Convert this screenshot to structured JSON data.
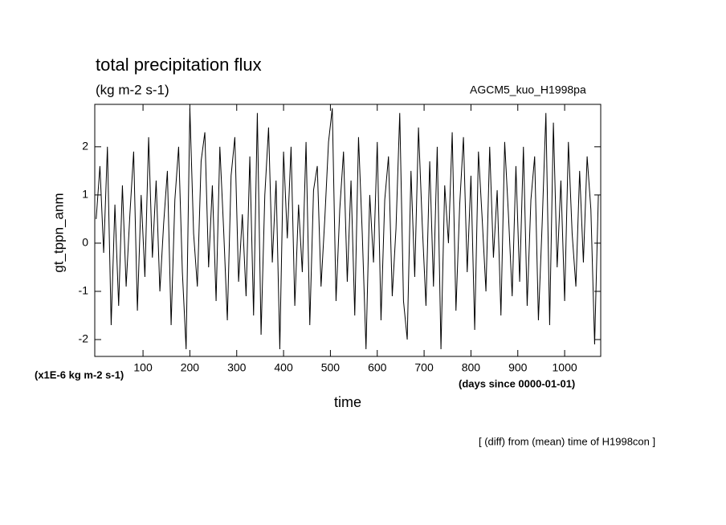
{
  "chart_data": {
    "type": "line",
    "title": "total precipitation flux",
    "subtitle": "(kg m-2 s-1)",
    "experiment": "AGCM5_kuo_H1998pa",
    "y_label": "gt_tppn_anm",
    "y_unit": "(x1E-6 kg m-2 s-1)",
    "x_label": "time",
    "x_unit": "(days since 0000-01-01)",
    "note": "[ (diff) from (mean) time of H1998con ]",
    "xlim": [
      -3,
      1077
    ],
    "ylim": [
      -2.35,
      2.88
    ],
    "xticks": [
      100,
      200,
      300,
      400,
      500,
      600,
      700,
      800,
      900,
      1000
    ],
    "yticks": [
      -2,
      -1,
      0,
      1,
      2
    ],
    "color": "#000000",
    "x": [
      0,
      8,
      16,
      24,
      32,
      40,
      48,
      56,
      64,
      72,
      80,
      88,
      96,
      104,
      112,
      120,
      128,
      136,
      144,
      152,
      160,
      168,
      176,
      184,
      192,
      200,
      208,
      216,
      224,
      232,
      240,
      248,
      256,
      264,
      272,
      280,
      288,
      296,
      304,
      312,
      320,
      328,
      336,
      344,
      352,
      360,
      368,
      376,
      384,
      392,
      400,
      408,
      416,
      424,
      432,
      440,
      448,
      456,
      464,
      472,
      480,
      488,
      496,
      504,
      512,
      520,
      528,
      536,
      544,
      552,
      560,
      568,
      576,
      584,
      592,
      600,
      608,
      616,
      624,
      632,
      640,
      648,
      656,
      664,
      672,
      680,
      688,
      696,
      704,
      712,
      720,
      728,
      736,
      744,
      752,
      760,
      768,
      776,
      784,
      792,
      800,
      808,
      816,
      824,
      832,
      840,
      848,
      856,
      864,
      872,
      880,
      888,
      896,
      904,
      912,
      920,
      928,
      936,
      944,
      952,
      960,
      968,
      976,
      984,
      992,
      1000,
      1008,
      1016,
      1024,
      1032,
      1040,
      1048,
      1056,
      1064,
      1072
    ],
    "values": [
      0.5,
      1.6,
      -0.2,
      2.0,
      -1.7,
      0.8,
      -1.3,
      1.2,
      -0.9,
      0.6,
      1.9,
      -1.4,
      1.0,
      -0.7,
      2.2,
      -0.3,
      1.3,
      -1.0,
      0.4,
      1.5,
      -1.7,
      0.9,
      2.0,
      -0.6,
      -2.2,
      2.8,
      0.2,
      -0.9,
      1.7,
      2.3,
      -0.5,
      1.2,
      -1.2,
      2.0,
      0.3,
      -1.6,
      1.4,
      2.2,
      -0.8,
      0.6,
      -1.1,
      1.8,
      -1.5,
      2.7,
      -1.9,
      1.0,
      2.4,
      -0.4,
      1.3,
      -2.2,
      1.9,
      0.1,
      2.0,
      -1.3,
      0.8,
      -0.6,
      2.1,
      -1.7,
      1.1,
      1.6,
      -0.9,
      0.5,
      2.1,
      2.8,
      -1.2,
      0.7,
      1.9,
      -0.8,
      1.3,
      -1.5,
      2.2,
      0.2,
      -2.2,
      1.0,
      -0.4,
      2.1,
      -1.6,
      0.9,
      1.8,
      -1.1,
      0.3,
      2.7,
      -1.2,
      -2.0,
      1.5,
      -0.7,
      2.4,
      0.4,
      -1.3,
      1.7,
      -0.9,
      2.0,
      -2.2,
      1.2,
      0.0,
      2.3,
      -1.4,
      0.8,
      2.2,
      -0.6,
      1.4,
      -1.8,
      1.9,
      0.5,
      -1.0,
      2.0,
      -0.3,
      1.1,
      -1.5,
      2.1,
      0.6,
      -1.1,
      1.6,
      -0.8,
      2.0,
      -1.3,
      0.9,
      1.8,
      -1.6,
      0.4,
      2.7,
      -1.7,
      2.5,
      -0.5,
      1.3,
      -1.2,
      2.1,
      0.2,
      -0.9,
      1.5,
      -0.4,
      1.8,
      0.7,
      -2.1,
      1.0
    ]
  }
}
